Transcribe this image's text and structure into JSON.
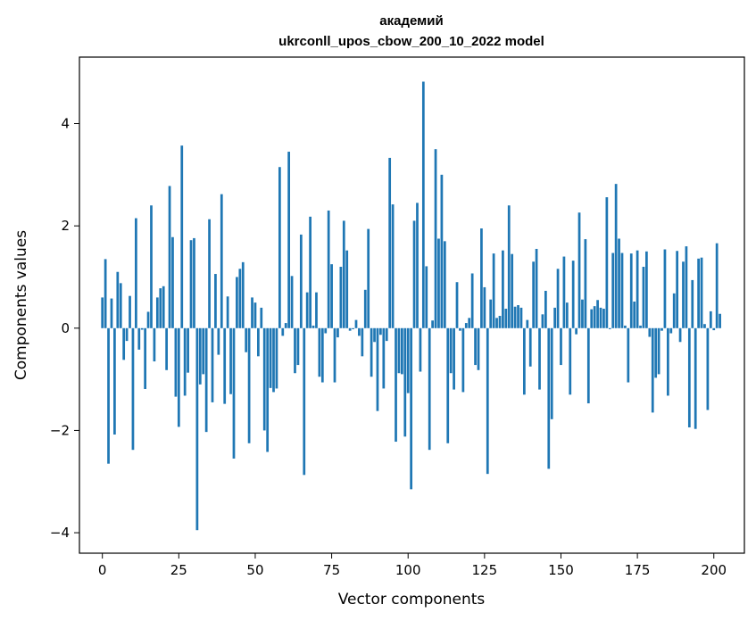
{
  "chart_data": {
    "type": "bar",
    "title_line1": "академий",
    "title_line2": "ukrconll_upos_cbow_200_10_2022 model",
    "xlabel": "Vector components",
    "ylabel": "Components values",
    "xlim": [
      -7.5,
      210
    ],
    "ylim": [
      -4.4,
      5.3
    ],
    "xticks": [
      0,
      25,
      50,
      75,
      100,
      125,
      150,
      175,
      200
    ],
    "xtick_labels": [
      "0",
      "25",
      "50",
      "75",
      "100",
      "125",
      "150",
      "175",
      "200"
    ],
    "yticks": [
      -4,
      -2,
      0,
      2,
      4
    ],
    "ytick_labels": [
      "−4",
      "−2",
      "0",
      "2",
      "4"
    ],
    "bar_color": "#1f77b4",
    "grid": false,
    "values": [
      0.6,
      1.35,
      -2.65,
      0.58,
      -2.08,
      1.1,
      0.88,
      -0.62,
      -0.25,
      0.63,
      -2.38,
      2.15,
      -0.42,
      -0.03,
      -1.19,
      0.32,
      2.4,
      -0.65,
      0.6,
      0.78,
      0.82,
      -0.82,
      2.78,
      1.78,
      -1.34,
      -1.93,
      3.57,
      -1.32,
      -0.87,
      1.72,
      1.76,
      -3.95,
      -1.1,
      -0.9,
      -2.03,
      2.13,
      -1.45,
      1.06,
      -0.52,
      2.62,
      -1.48,
      0.62,
      -1.29,
      -2.55,
      1.0,
      1.16,
      1.29,
      -0.47,
      -2.25,
      0.6,
      0.5,
      -0.55,
      0.4,
      -2.0,
      -2.42,
      -1.17,
      -1.25,
      -1.18,
      3.15,
      -0.15,
      0.1,
      3.45,
      1.02,
      -0.88,
      -0.72,
      1.83,
      -2.87,
      0.7,
      2.18,
      0.05,
      0.7,
      -0.95,
      -1.06,
      -0.1,
      2.3,
      1.25,
      -1.06,
      -0.18,
      1.2,
      2.1,
      1.52,
      -0.05,
      -0.02,
      0.16,
      -0.15,
      -0.55,
      0.75,
      1.94,
      -0.95,
      -0.27,
      -1.62,
      -0.13,
      -1.18,
      -0.25,
      3.33,
      2.42,
      -2.22,
      -0.88,
      -0.9,
      -2.12,
      -1.27,
      -3.15,
      2.1,
      2.45,
      -0.85,
      4.82,
      1.21,
      -2.38,
      0.15,
      3.5,
      1.75,
      3.0,
      1.7,
      -2.25,
      -0.88,
      -1.2,
      0.9,
      -0.05,
      -1.25,
      0.1,
      0.2,
      1.07,
      -0.72,
      -0.82,
      1.95,
      0.8,
      -2.85,
      0.56,
      1.46,
      0.2,
      0.24,
      1.52,
      0.38,
      2.4,
      1.45,
      0.42,
      0.45,
      0.4,
      -1.3,
      0.16,
      -0.75,
      1.3,
      1.55,
      -1.2,
      0.27,
      0.73,
      -2.75,
      -1.78,
      0.4,
      1.16,
      -0.72,
      1.4,
      0.5,
      -1.3,
      1.32,
      -0.12,
      2.26,
      0.56,
      1.74,
      -1.47,
      0.37,
      0.43,
      0.55,
      0.4,
      0.38,
      2.56,
      -0.02,
      1.47,
      2.82,
      1.75,
      1.47,
      0.05,
      -1.06,
      1.46,
      0.52,
      1.52,
      0.05,
      1.2,
      1.5,
      -0.17,
      -1.65,
      -0.97,
      -0.9,
      -0.05,
      1.54,
      -1.32,
      -0.1,
      0.68,
      1.51,
      -0.27,
      1.3,
      1.6,
      -1.94,
      0.94,
      -1.97,
      1.36,
      1.38,
      0.08,
      -1.6,
      0.33,
      -0.04,
      1.66,
      0.28
    ]
  }
}
